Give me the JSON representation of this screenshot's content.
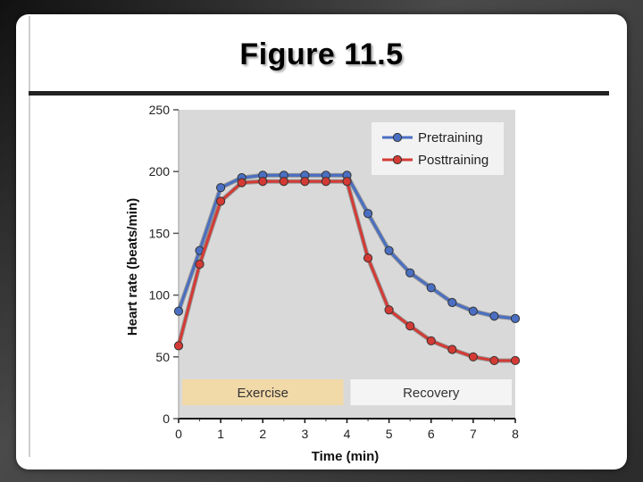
{
  "slide": {
    "title": "Figure 11.5"
  },
  "colors": {
    "plot_bg": "#d9d9d9",
    "pretraining": "#4a6fc2",
    "posttraining": "#d43a34",
    "exercise_box": "#f2d9a8",
    "recovery_box": "#f4f4f4"
  },
  "chart_data": {
    "type": "line",
    "title": "",
    "xlabel": "Time (min)",
    "ylabel": "Heart rate (beats/min)",
    "xlim": [
      0,
      8
    ],
    "ylim": [
      0,
      250
    ],
    "x_ticks": [
      0,
      1,
      2,
      3,
      4,
      5,
      6,
      7,
      8
    ],
    "y_ticks": [
      0,
      50,
      100,
      150,
      200,
      250
    ],
    "grid": false,
    "legend_position": "top-right",
    "x": [
      0,
      0.5,
      1,
      1.5,
      2,
      2.5,
      3,
      3.5,
      4,
      4.5,
      5,
      5.5,
      6,
      6.5,
      7,
      7.5,
      8
    ],
    "series": [
      {
        "name": "Pretraining",
        "color": "#4a6fc2",
        "values": [
          87,
          136,
          187,
          195,
          197,
          197,
          197,
          197,
          197,
          166,
          136,
          118,
          106,
          94,
          87,
          83,
          81
        ]
      },
      {
        "name": "Posttraining",
        "color": "#d43a34",
        "values": [
          59,
          125,
          176,
          191,
          192,
          192,
          192,
          192,
          192,
          130,
          88,
          75,
          63,
          56,
          50,
          47,
          47
        ]
      }
    ],
    "annotations": [
      {
        "label": "Exercise",
        "x_range": [
          0,
          4
        ]
      },
      {
        "label": "Recovery",
        "x_range": [
          4,
          8
        ]
      }
    ]
  }
}
